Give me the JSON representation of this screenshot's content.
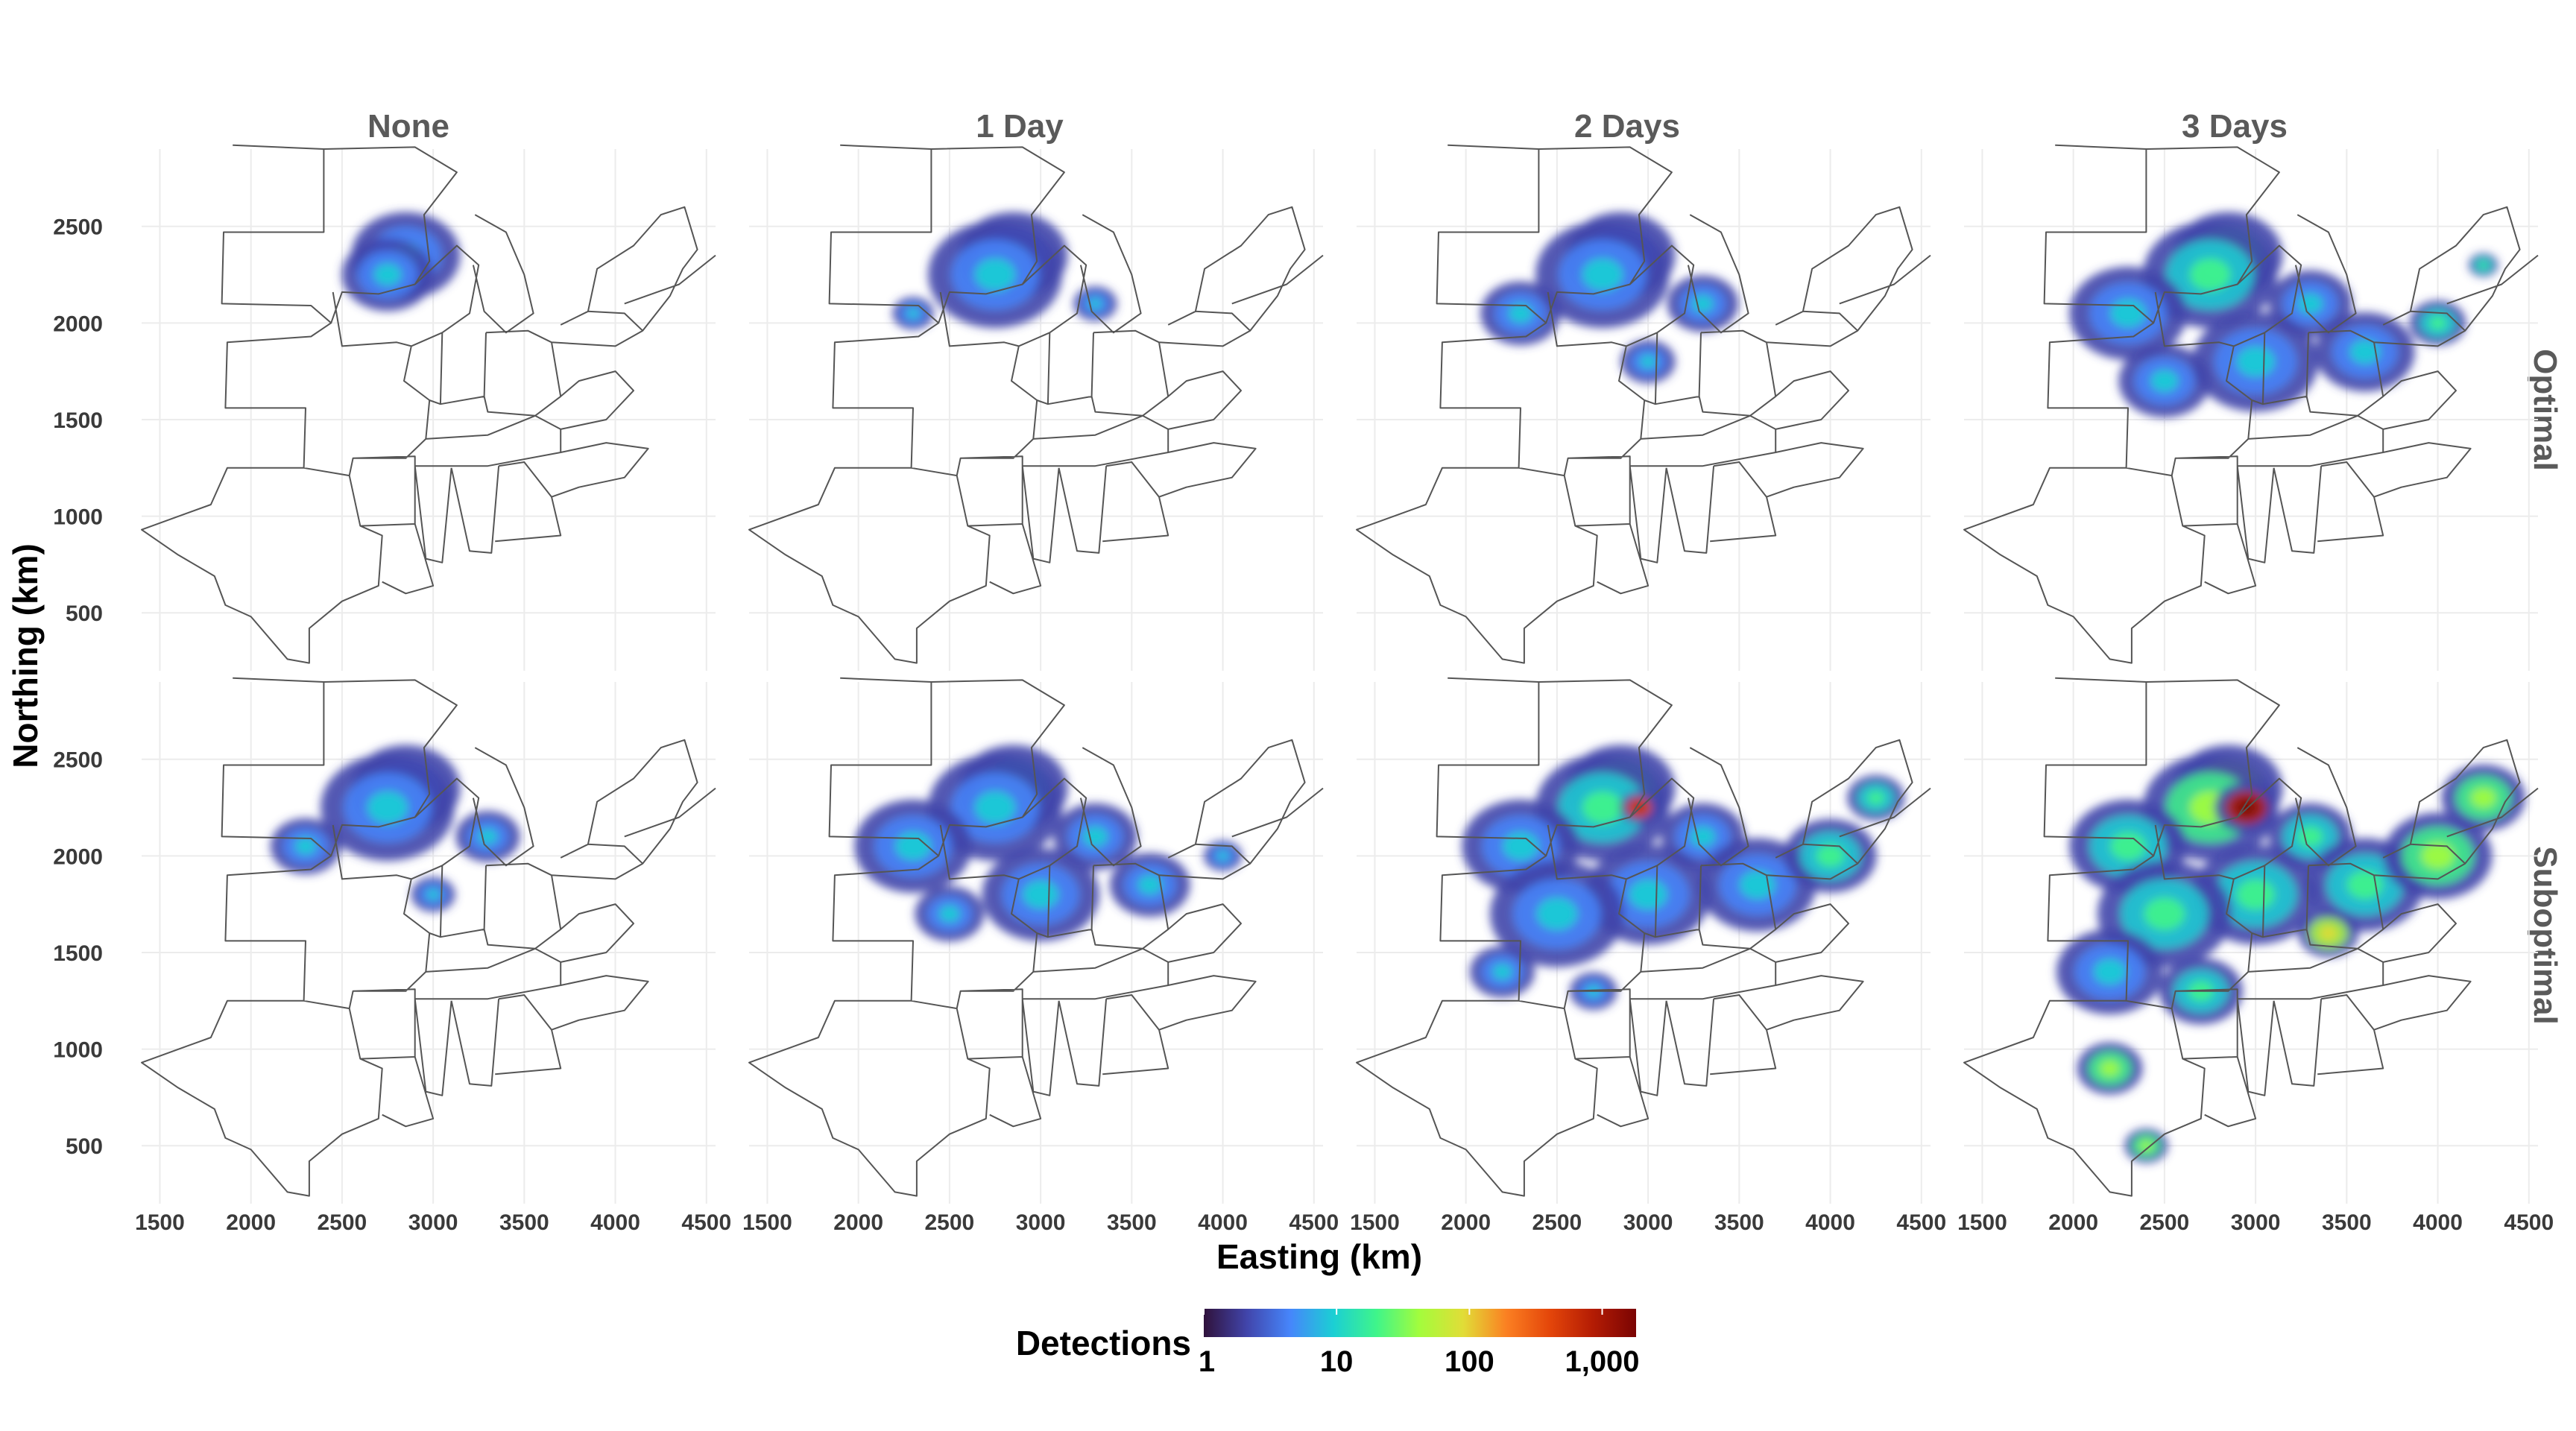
{
  "figure": {
    "columns": [
      "None",
      "1 Day",
      "2 Days",
      "3 Days"
    ],
    "rows": [
      "Optimal",
      "Suboptimal"
    ],
    "x_axis": {
      "label": "Easting (km)",
      "ticks": [
        1500,
        2000,
        2500,
        3000,
        3500,
        4000,
        4500
      ],
      "range": [
        1400,
        4550
      ]
    },
    "y_axis": {
      "label": "Northing (km)",
      "ticks": [
        500,
        1000,
        1500,
        2000,
        2500
      ],
      "range": [
        200,
        2900
      ]
    },
    "legend": {
      "title": "Detections",
      "tick_labels": [
        "1",
        "10",
        "100",
        "1,000"
      ],
      "tick_values": [
        1,
        10,
        100,
        1000
      ],
      "scale": "log",
      "colors": [
        "#30123b",
        "#4145ab",
        "#4686fb",
        "#1bcfd4",
        "#3ff58a",
        "#a4fc3c",
        "#e1dd37",
        "#fb8022",
        "#e4460a",
        "#b41c04",
        "#7a0403"
      ]
    },
    "panels": [
      {
        "row": "Optimal",
        "col": "None",
        "level": 0.8
      },
      {
        "row": "Optimal",
        "col": "1 Day",
        "level": 1.2
      },
      {
        "row": "Optimal",
        "col": "2 Days",
        "level": 1.6
      },
      {
        "row": "Optimal",
        "col": "3 Days",
        "level": 2.4
      },
      {
        "row": "Suboptimal",
        "col": "None",
        "level": 1.5
      },
      {
        "row": "Suboptimal",
        "col": "1 Day",
        "level": 2.2
      },
      {
        "row": "Suboptimal",
        "col": "2 Days",
        "level": 2.8
      },
      {
        "row": "Suboptimal",
        "col": "3 Days",
        "level": 3.2
      }
    ]
  }
}
